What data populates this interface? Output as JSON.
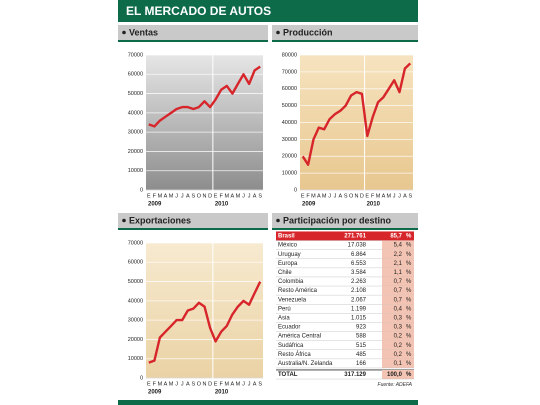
{
  "header": {
    "title": "EL MERCADO DE AUTOS"
  },
  "chart_data": [
    {
      "type": "line",
      "title": "Ventas",
      "categories": [
        "E",
        "F",
        "M",
        "A",
        "M",
        "J",
        "J",
        "A",
        "S",
        "O",
        "N",
        "D",
        "E",
        "F",
        "M",
        "A",
        "M",
        "J",
        "J",
        "A",
        "S"
      ],
      "years": [
        "2009",
        "2010"
      ],
      "values": [
        34000,
        33000,
        36000,
        38000,
        40000,
        42000,
        43000,
        43000,
        42000,
        43000,
        46000,
        43000,
        47000,
        52000,
        54000,
        50000,
        55000,
        60000,
        55000,
        62000,
        64000
      ],
      "color": "#d7262b",
      "ylim": [
        0,
        70000
      ],
      "yticks": [
        0,
        10000,
        20000,
        30000,
        40000,
        50000,
        60000,
        70000
      ],
      "grid": true
    },
    {
      "type": "line",
      "title": "Producción",
      "categories": [
        "E",
        "F",
        "M",
        "A",
        "M",
        "J",
        "J",
        "A",
        "S",
        "O",
        "N",
        "D",
        "E",
        "F",
        "M",
        "A",
        "M",
        "J",
        "J",
        "A",
        "S"
      ],
      "years": [
        "2009",
        "2010"
      ],
      "values": [
        20000,
        15000,
        30000,
        37000,
        36000,
        42000,
        45000,
        47000,
        50000,
        56000,
        58000,
        57000,
        32000,
        43000,
        52000,
        55000,
        60000,
        65000,
        58000,
        72000,
        75000
      ],
      "color": "#d7262b",
      "ylim": [
        0,
        80000
      ],
      "yticks": [
        0,
        10000,
        20000,
        30000,
        40000,
        50000,
        60000,
        70000,
        80000
      ],
      "grid": true
    },
    {
      "type": "line",
      "title": "Exportaciones",
      "categories": [
        "E",
        "F",
        "M",
        "A",
        "M",
        "J",
        "J",
        "A",
        "S",
        "O",
        "N",
        "D",
        "E",
        "F",
        "M",
        "A",
        "M",
        "J",
        "J",
        "A",
        "S"
      ],
      "years": [
        "2009",
        "2010"
      ],
      "values": [
        8000,
        9000,
        21000,
        24000,
        27000,
        30000,
        30000,
        35000,
        36000,
        39000,
        37000,
        26000,
        19000,
        24000,
        27000,
        33000,
        37000,
        40000,
        38000,
        44000,
        50000
      ],
      "color": "#d7262b",
      "ylim": [
        0,
        70000
      ],
      "yticks": [
        0,
        10000,
        20000,
        30000,
        40000,
        50000,
        60000,
        70000
      ],
      "grid": true
    }
  ],
  "table": {
    "title": "Participación por destino",
    "rows": [
      [
        "Brasil",
        "271.761",
        "85,7",
        "%"
      ],
      [
        "México",
        "17.038",
        "5,4",
        "%"
      ],
      [
        "Uruguay",
        "6.864",
        "2,2",
        "%"
      ],
      [
        "Europa",
        "6.553",
        "2,1",
        "%"
      ],
      [
        "Chile",
        "3.584",
        "1,1",
        "%"
      ],
      [
        "Colombia",
        "2.263",
        "0,7",
        "%"
      ],
      [
        "Resto América",
        "2.108",
        "0,7",
        "%"
      ],
      [
        "Venezuela",
        "2.067",
        "0,7",
        "%"
      ],
      [
        "Perú",
        "1.199",
        "0,4",
        "%"
      ],
      [
        "Asia",
        "1.015",
        "0,3",
        "%"
      ],
      [
        "Ecuador",
        "923",
        "0,3",
        "%"
      ],
      [
        "América Central",
        "588",
        "0,2",
        "%"
      ],
      [
        "Sudáfrica",
        "515",
        "0,2",
        "%"
      ],
      [
        "Resto África",
        "485",
        "0,2",
        "%"
      ],
      [
        "Australia/N. Zelanda",
        "166",
        "0,1",
        "%"
      ]
    ],
    "total": [
      "TOTAL",
      "317.129",
      "100,0",
      "%"
    ],
    "source": "Fuente: ADEFA"
  }
}
